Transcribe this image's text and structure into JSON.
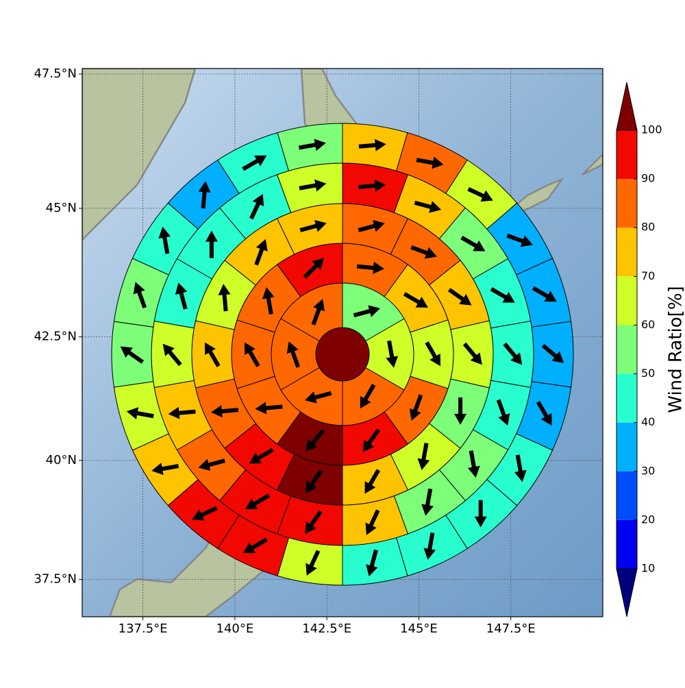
{
  "chart_data": {
    "type": "polar",
    "projection": "mercator",
    "xlim": [
      135.85,
      150.0
    ],
    "ylim": [
      36.7,
      47.6
    ],
    "grid": true,
    "xticks": [
      {
        "value": 137.5,
        "label": "137.5°E"
      },
      {
        "value": 140,
        "label": "140°E"
      },
      {
        "value": 142.5,
        "label": "142.5°E"
      },
      {
        "value": 145,
        "label": "145°E"
      },
      {
        "value": 147.5,
        "label": "147.5°E"
      }
    ],
    "yticks": [
      {
        "value": 37.5,
        "label": "37.5°N"
      },
      {
        "value": 40,
        "label": "40°N"
      },
      {
        "value": 42.5,
        "label": "42.5°N"
      },
      {
        "value": 45,
        "label": "45°N"
      },
      {
        "value": 47.5,
        "label": "47.5°N"
      }
    ],
    "colorbar": {
      "label": "Wind Ratio[%]",
      "levels": [
        10,
        20,
        30,
        40,
        50,
        60,
        70,
        80,
        90,
        100
      ],
      "colors": [
        "#00007f",
        "#0000f1",
        "#004cff",
        "#00b0ff",
        "#29ffce",
        "#7dff7a",
        "#ceff29",
        "#ffc400",
        "#ff6800",
        "#f10800",
        "#7f0000"
      ]
    },
    "center": {
      "value": 105
    },
    "rings": [
      {
        "values": [
          55,
          65,
          85,
          85,
          85,
          85
        ],
        "directions": [
          75,
          170,
          210,
          255,
          340,
          20
        ]
      },
      {
        "values": [
          85,
          75,
          65,
          85,
          95,
          105,
          85,
          85,
          85,
          95
        ],
        "directions": [
          95,
          120,
          150,
          200,
          215,
          220,
          265,
          330,
          350,
          45
        ]
      },
      {
        "values": [
          85,
          85,
          75,
          65,
          55,
          65,
          75,
          105,
          95,
          85,
          75,
          65,
          75,
          75
        ],
        "directions": [
          75,
          110,
          125,
          140,
          180,
          190,
          210,
          215,
          240,
          265,
          330,
          355,
          20,
          75
        ]
      },
      {
        "values": [
          95,
          75,
          55,
          45,
          45,
          45,
          55,
          55,
          75,
          95,
          95,
          85,
          75,
          65,
          45,
          45,
          45,
          65
        ],
        "directions": [
          85,
          105,
          120,
          120,
          140,
          160,
          170,
          190,
          205,
          215,
          240,
          255,
          265,
          320,
          345,
          0,
          25,
          80
        ]
      },
      {
        "values": [
          75,
          85,
          65,
          35,
          35,
          35,
          35,
          45,
          45,
          45,
          45,
          65,
          95,
          95,
          75,
          65,
          55,
          55,
          45,
          35,
          45,
          55
        ],
        "directions": [
          85,
          100,
          115,
          110,
          120,
          130,
          150,
          170,
          180,
          190,
          195,
          205,
          240,
          245,
          260,
          280,
          305,
          340,
          350,
          5,
          60,
          80
        ]
      }
    ]
  }
}
